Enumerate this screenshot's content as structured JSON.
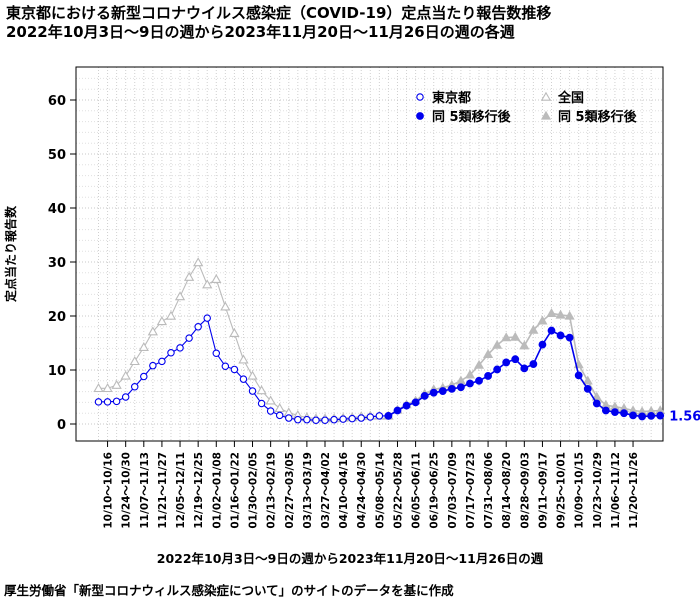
{
  "header": {
    "title_line1": "東京都における新型コロナウイルス感染症（COVID-19）定点当たり報告数推移",
    "title_line2": "2022年10月3日〜9日の週から2023年11月20日〜11月26日の週の各週"
  },
  "footer": {
    "source": "厚生労働省「新型コロナウィルス感染症について」のサイトのデータを基に作成"
  },
  "chart_data": {
    "type": "line",
    "title": "東京都における新型コロナウイルス感染症（COVID-19）定点当たり報告数推移",
    "subtitle": "2022年10月3日〜9日の週から2023年11月20日〜11月26日の週の各週",
    "xlabel": "2022年10月3日〜9日の週から2023年11月20日〜11月26日の週",
    "ylabel": "定点当たり報告数",
    "ylim": [
      0,
      65
    ],
    "yticks": [
      0,
      10,
      20,
      30,
      40,
      50,
      60
    ],
    "grid": true,
    "legend_position": "top-right",
    "last_value_label": "1.56",
    "x_tick_labels": [
      "10/10～10/16",
      "10/24～10/30",
      "11/07～11/13",
      "11/21～11/27",
      "12/05～12/11",
      "12/19～12/25",
      "01/02～01/08",
      "01/16～01/22",
      "01/30～02/05",
      "02/13～02/19",
      "02/27～03/05",
      "03/13～03/19",
      "03/27～04/02",
      "04/10～04/16",
      "04/24～04/30",
      "05/08～05/14",
      "05/22～05/28",
      "06/05～06/11",
      "06/19～06/25",
      "07/03～07/09",
      "07/17～07/23",
      "07/31～08/06",
      "08/14～08/20",
      "08/28～09/03",
      "09/11～09/17",
      "09/25～10/01",
      "10/09～10/15",
      "10/23～10/29",
      "11/06～11/12",
      "11/20～11/26"
    ],
    "series": [
      {
        "name": "東京都",
        "marker": "open-circle",
        "color": "#0000ee",
        "start_week": 0,
        "values": [
          4.1,
          4.1,
          4.2,
          5.0,
          6.9,
          8.8,
          10.8,
          11.6,
          13.2,
          14.1,
          15.9,
          18.0,
          19.6,
          13.1,
          10.7,
          10.1,
          8.3,
          6.1,
          3.8,
          2.4,
          1.6,
          1.1,
          0.8,
          0.8,
          0.7,
          0.7,
          0.8,
          0.9,
          1.0,
          1.1,
          1.3,
          1.5,
          1.5
        ]
      },
      {
        "name": "全国",
        "marker": "open-triangle",
        "color": "#bbbbbb",
        "start_week": 0,
        "values": [
          6.6,
          6.6,
          7.2,
          8.9,
          11.6,
          14.2,
          17.1,
          19.0,
          20.0,
          23.6,
          27.2,
          29.9,
          25.8,
          26.8,
          21.7,
          16.8,
          11.9,
          8.9,
          6.2,
          4.3,
          2.9,
          2.1,
          1.6,
          1.2,
          1.0,
          1.0,
          1.0,
          1.1,
          1.2,
          1.4,
          1.5,
          1.5,
          1.5
        ]
      },
      {
        "name": "同 5類移行後",
        "marker": "filled-circle",
        "color": "#0000ee",
        "start_week": 32,
        "values": [
          1.5,
          2.5,
          3.4,
          4.0,
          5.2,
          5.8,
          6.1,
          6.5,
          6.8,
          7.5,
          8.0,
          8.9,
          10.1,
          11.4,
          12.0,
          10.3,
          11.1,
          14.7,
          17.3,
          16.4,
          16.0,
          9.0,
          6.5,
          3.8,
          2.5,
          2.2,
          2.0,
          1.6,
          1.4,
          1.5,
          1.56
        ]
      },
      {
        "name": "同 5類移行後",
        "marker": "filled-triangle",
        "color": "#bbbbbb",
        "start_week": 32,
        "values": [
          1.5,
          2.6,
          3.6,
          4.3,
          5.6,
          6.4,
          6.7,
          7.2,
          8.0,
          9.1,
          10.9,
          12.9,
          14.6,
          16.0,
          16.1,
          14.5,
          17.4,
          19.1,
          20.5,
          20.2,
          20.0,
          11.0,
          8.0,
          5.0,
          3.5,
          3.2,
          2.9,
          2.5,
          2.3,
          2.4,
          2.5
        ]
      }
    ]
  }
}
